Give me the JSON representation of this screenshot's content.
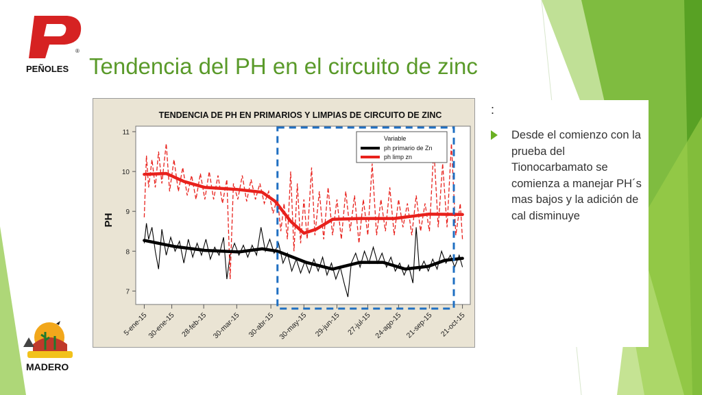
{
  "slide": {
    "title": "Tendencia del PH en el circuito de zinc",
    "colon": ":",
    "bullet": "Desde el comienzo con la prueba del Tionocarbamato se comienza a manejar PH´s mas bajos y la adición de cal disminuye",
    "logo_top_text": "PEÑOLES",
    "logo_bottom_text": "MADERO",
    "accent_color": "#6ab023"
  },
  "chart_data": {
    "type": "line",
    "title": "TENDENCIA DE PH EN PRIMARIOS Y LIMPIAS DE CIRCUITO DE ZINC",
    "ylabel": "PH",
    "xlabel": "",
    "ylim": [
      6.8,
      11
    ],
    "yticks": [
      7,
      8,
      9,
      10,
      11
    ],
    "xlim": [
      "2015-01-01",
      "2015-10-25"
    ],
    "xticks": [
      {
        "date": "2015-01-05",
        "label": "5-ene-15"
      },
      {
        "date": "2015-01-30",
        "label": "30-ene-15"
      },
      {
        "date": "2015-02-28",
        "label": "28-feb-15"
      },
      {
        "date": "2015-03-30",
        "label": "30-mar-15"
      },
      {
        "date": "2015-04-30",
        "label": "30-abr-15"
      },
      {
        "date": "2015-05-30",
        "label": "30-may-15"
      },
      {
        "date": "2015-06-29",
        "label": "29-jun-15"
      },
      {
        "date": "2015-07-27",
        "label": "27-jul-15"
      },
      {
        "date": "2015-08-24",
        "label": "24-ago-15"
      },
      {
        "date": "2015-09-21",
        "label": "21-sep-15"
      },
      {
        "date": "2015-10-21",
        "label": "21-oct-15"
      }
    ],
    "legend": {
      "title": "Variable",
      "position": "top-right"
    },
    "highlight_from": "2015-05-06",
    "series": [
      {
        "name": "ph primario de Zn",
        "color": "#000000",
        "trend_points": [
          {
            "x": "2015-01-05",
            "y": 8.27
          },
          {
            "x": "2015-02-01",
            "y": 8.12
          },
          {
            "x": "2015-03-01",
            "y": 8.02
          },
          {
            "x": "2015-04-01",
            "y": 7.98
          },
          {
            "x": "2015-04-22",
            "y": 8.06
          },
          {
            "x": "2015-05-06",
            "y": 8.0
          },
          {
            "x": "2015-06-01",
            "y": 7.72
          },
          {
            "x": "2015-06-25",
            "y": 7.55
          },
          {
            "x": "2015-07-20",
            "y": 7.72
          },
          {
            "x": "2015-08-10",
            "y": 7.72
          },
          {
            "x": "2015-08-30",
            "y": 7.55
          },
          {
            "x": "2015-09-20",
            "y": 7.62
          },
          {
            "x": "2015-10-05",
            "y": 7.77
          },
          {
            "x": "2015-10-21",
            "y": 7.82
          }
        ],
        "raw_points": [
          {
            "x": "2015-01-05",
            "y": 8.2
          },
          {
            "x": "2015-01-07",
            "y": 8.7
          },
          {
            "x": "2015-01-09",
            "y": 8.3
          },
          {
            "x": "2015-01-12",
            "y": 8.6
          },
          {
            "x": "2015-01-15",
            "y": 8.0
          },
          {
            "x": "2015-01-18",
            "y": 7.55
          },
          {
            "x": "2015-01-21",
            "y": 8.55
          },
          {
            "x": "2015-01-25",
            "y": 7.9
          },
          {
            "x": "2015-01-29",
            "y": 8.35
          },
          {
            "x": "2015-02-02",
            "y": 8.0
          },
          {
            "x": "2015-02-06",
            "y": 8.25
          },
          {
            "x": "2015-02-10",
            "y": 7.7
          },
          {
            "x": "2015-02-14",
            "y": 8.3
          },
          {
            "x": "2015-02-18",
            "y": 7.85
          },
          {
            "x": "2015-02-22",
            "y": 8.2
          },
          {
            "x": "2015-02-26",
            "y": 7.9
          },
          {
            "x": "2015-03-02",
            "y": 8.3
          },
          {
            "x": "2015-03-06",
            "y": 7.8
          },
          {
            "x": "2015-03-10",
            "y": 8.1
          },
          {
            "x": "2015-03-14",
            "y": 7.9
          },
          {
            "x": "2015-03-18",
            "y": 8.35
          },
          {
            "x": "2015-03-21",
            "y": 7.3
          },
          {
            "x": "2015-03-24",
            "y": 7.9
          },
          {
            "x": "2015-03-28",
            "y": 8.2
          },
          {
            "x": "2015-04-01",
            "y": 7.9
          },
          {
            "x": "2015-04-05",
            "y": 8.15
          },
          {
            "x": "2015-04-09",
            "y": 7.85
          },
          {
            "x": "2015-04-13",
            "y": 8.15
          },
          {
            "x": "2015-04-17",
            "y": 7.9
          },
          {
            "x": "2015-04-21",
            "y": 8.6
          },
          {
            "x": "2015-04-25",
            "y": 8.0
          },
          {
            "x": "2015-04-29",
            "y": 8.3
          },
          {
            "x": "2015-05-03",
            "y": 7.95
          },
          {
            "x": "2015-05-07",
            "y": 8.2
          },
          {
            "x": "2015-05-11",
            "y": 7.7
          },
          {
            "x": "2015-05-15",
            "y": 7.95
          },
          {
            "x": "2015-05-19",
            "y": 7.5
          },
          {
            "x": "2015-05-23",
            "y": 7.8
          },
          {
            "x": "2015-05-27",
            "y": 7.45
          },
          {
            "x": "2015-05-31",
            "y": 7.75
          },
          {
            "x": "2015-06-04",
            "y": 7.45
          },
          {
            "x": "2015-06-08",
            "y": 7.8
          },
          {
            "x": "2015-06-12",
            "y": 7.5
          },
          {
            "x": "2015-06-16",
            "y": 7.85
          },
          {
            "x": "2015-06-20",
            "y": 7.4
          },
          {
            "x": "2015-06-24",
            "y": 7.7
          },
          {
            "x": "2015-06-28",
            "y": 7.3
          },
          {
            "x": "2015-07-02",
            "y": 7.6
          },
          {
            "x": "2015-07-06",
            "y": 7.15
          },
          {
            "x": "2015-07-09",
            "y": 6.85
          },
          {
            "x": "2015-07-12",
            "y": 7.7
          },
          {
            "x": "2015-07-16",
            "y": 7.95
          },
          {
            "x": "2015-07-20",
            "y": 7.6
          },
          {
            "x": "2015-07-24",
            "y": 8.0
          },
          {
            "x": "2015-07-28",
            "y": 7.7
          },
          {
            "x": "2015-08-01",
            "y": 8.1
          },
          {
            "x": "2015-08-05",
            "y": 7.7
          },
          {
            "x": "2015-08-09",
            "y": 7.95
          },
          {
            "x": "2015-08-13",
            "y": 7.6
          },
          {
            "x": "2015-08-17",
            "y": 7.85
          },
          {
            "x": "2015-08-21",
            "y": 7.5
          },
          {
            "x": "2015-08-25",
            "y": 7.7
          },
          {
            "x": "2015-08-29",
            "y": 7.4
          },
          {
            "x": "2015-09-02",
            "y": 7.65
          },
          {
            "x": "2015-09-06",
            "y": 7.2
          },
          {
            "x": "2015-09-09",
            "y": 8.6
          },
          {
            "x": "2015-09-12",
            "y": 7.5
          },
          {
            "x": "2015-09-16",
            "y": 7.75
          },
          {
            "x": "2015-09-20",
            "y": 7.5
          },
          {
            "x": "2015-09-24",
            "y": 7.8
          },
          {
            "x": "2015-09-28",
            "y": 7.55
          },
          {
            "x": "2015-10-02",
            "y": 8.0
          },
          {
            "x": "2015-10-06",
            "y": 7.7
          },
          {
            "x": "2015-10-10",
            "y": 7.9
          },
          {
            "x": "2015-10-14",
            "y": 7.6
          },
          {
            "x": "2015-10-18",
            "y": 7.9
          },
          {
            "x": "2015-10-21",
            "y": 7.6
          }
        ]
      },
      {
        "name": "ph limp zn",
        "color": "#e8211c",
        "trend_points": [
          {
            "x": "2015-01-05",
            "y": 9.93
          },
          {
            "x": "2015-01-25",
            "y": 9.95
          },
          {
            "x": "2015-02-10",
            "y": 9.75
          },
          {
            "x": "2015-03-01",
            "y": 9.6
          },
          {
            "x": "2015-03-30",
            "y": 9.55
          },
          {
            "x": "2015-04-22",
            "y": 9.48
          },
          {
            "x": "2015-05-04",
            "y": 9.25
          },
          {
            "x": "2015-05-18",
            "y": 8.75
          },
          {
            "x": "2015-05-30",
            "y": 8.45
          },
          {
            "x": "2015-06-10",
            "y": 8.55
          },
          {
            "x": "2015-06-25",
            "y": 8.8
          },
          {
            "x": "2015-07-20",
            "y": 8.82
          },
          {
            "x": "2015-08-20",
            "y": 8.82
          },
          {
            "x": "2015-09-20",
            "y": 8.93
          },
          {
            "x": "2015-10-21",
            "y": 8.92
          }
        ],
        "raw_points": [
          {
            "x": "2015-01-05",
            "y": 8.85
          },
          {
            "x": "2015-01-07",
            "y": 10.4
          },
          {
            "x": "2015-01-09",
            "y": 9.6
          },
          {
            "x": "2015-01-12",
            "y": 10.3
          },
          {
            "x": "2015-01-15",
            "y": 9.6
          },
          {
            "x": "2015-01-18",
            "y": 10.5
          },
          {
            "x": "2015-01-21",
            "y": 9.7
          },
          {
            "x": "2015-01-25",
            "y": 10.7
          },
          {
            "x": "2015-01-28",
            "y": 9.5
          },
          {
            "x": "2015-02-01",
            "y": 10.3
          },
          {
            "x": "2015-02-05",
            "y": 9.5
          },
          {
            "x": "2015-02-09",
            "y": 10.1
          },
          {
            "x": "2015-02-13",
            "y": 9.4
          },
          {
            "x": "2015-02-17",
            "y": 9.9
          },
          {
            "x": "2015-02-21",
            "y": 9.3
          },
          {
            "x": "2015-02-25",
            "y": 9.95
          },
          {
            "x": "2015-03-01",
            "y": 9.3
          },
          {
            "x": "2015-03-05",
            "y": 10.0
          },
          {
            "x": "2015-03-09",
            "y": 9.3
          },
          {
            "x": "2015-03-13",
            "y": 9.9
          },
          {
            "x": "2015-03-17",
            "y": 9.2
          },
          {
            "x": "2015-03-21",
            "y": 9.8
          },
          {
            "x": "2015-03-24",
            "y": 7.3
          },
          {
            "x": "2015-03-27",
            "y": 9.7
          },
          {
            "x": "2015-03-31",
            "y": 9.3
          },
          {
            "x": "2015-04-04",
            "y": 9.9
          },
          {
            "x": "2015-04-08",
            "y": 9.25
          },
          {
            "x": "2015-04-12",
            "y": 9.8
          },
          {
            "x": "2015-04-16",
            "y": 9.3
          },
          {
            "x": "2015-04-20",
            "y": 9.7
          },
          {
            "x": "2015-04-24",
            "y": 9.2
          },
          {
            "x": "2015-04-28",
            "y": 9.5
          },
          {
            "x": "2015-05-02",
            "y": 8.95
          },
          {
            "x": "2015-05-06",
            "y": 9.35
          },
          {
            "x": "2015-05-09",
            "y": 8.5
          },
          {
            "x": "2015-05-12",
            "y": 9.2
          },
          {
            "x": "2015-05-15",
            "y": 8.3
          },
          {
            "x": "2015-05-18",
            "y": 10.0
          },
          {
            "x": "2015-05-21",
            "y": 8.0
          },
          {
            "x": "2015-05-24",
            "y": 9.7
          },
          {
            "x": "2015-05-27",
            "y": 8.2
          },
          {
            "x": "2015-05-30",
            "y": 9.3
          },
          {
            "x": "2015-06-02",
            "y": 8.3
          },
          {
            "x": "2015-06-06",
            "y": 10.1
          },
          {
            "x": "2015-06-09",
            "y": 8.4
          },
          {
            "x": "2015-06-13",
            "y": 9.5
          },
          {
            "x": "2015-06-17",
            "y": 8.3
          },
          {
            "x": "2015-06-21",
            "y": 9.6
          },
          {
            "x": "2015-06-25",
            "y": 8.4
          },
          {
            "x": "2015-06-29",
            "y": 9.3
          },
          {
            "x": "2015-07-03",
            "y": 8.3
          },
          {
            "x": "2015-07-07",
            "y": 9.5
          },
          {
            "x": "2015-07-11",
            "y": 8.5
          },
          {
            "x": "2015-07-15",
            "y": 9.4
          },
          {
            "x": "2015-07-19",
            "y": 8.2
          },
          {
            "x": "2015-07-23",
            "y": 9.3
          },
          {
            "x": "2015-07-27",
            "y": 8.4
          },
          {
            "x": "2015-07-31",
            "y": 10.2
          },
          {
            "x": "2015-08-04",
            "y": 8.4
          },
          {
            "x": "2015-08-08",
            "y": 9.3
          },
          {
            "x": "2015-08-12",
            "y": 8.5
          },
          {
            "x": "2015-08-16",
            "y": 9.6
          },
          {
            "x": "2015-08-20",
            "y": 8.4
          },
          {
            "x": "2015-08-24",
            "y": 9.3
          },
          {
            "x": "2015-08-28",
            "y": 8.6
          },
          {
            "x": "2015-09-01",
            "y": 9.2
          },
          {
            "x": "2015-09-05",
            "y": 8.4
          },
          {
            "x": "2015-09-09",
            "y": 9.4
          },
          {
            "x": "2015-09-13",
            "y": 8.5
          },
          {
            "x": "2015-09-17",
            "y": 9.2
          },
          {
            "x": "2015-09-21",
            "y": 8.5
          },
          {
            "x": "2015-09-25",
            "y": 10.6
          },
          {
            "x": "2015-09-29",
            "y": 8.6
          },
          {
            "x": "2015-10-03",
            "y": 10.2
          },
          {
            "x": "2015-10-07",
            "y": 8.6
          },
          {
            "x": "2015-10-11",
            "y": 10.7
          },
          {
            "x": "2015-10-15",
            "y": 8.4
          },
          {
            "x": "2015-10-19",
            "y": 9.2
          },
          {
            "x": "2015-10-21",
            "y": 8.3
          }
        ]
      }
    ]
  }
}
